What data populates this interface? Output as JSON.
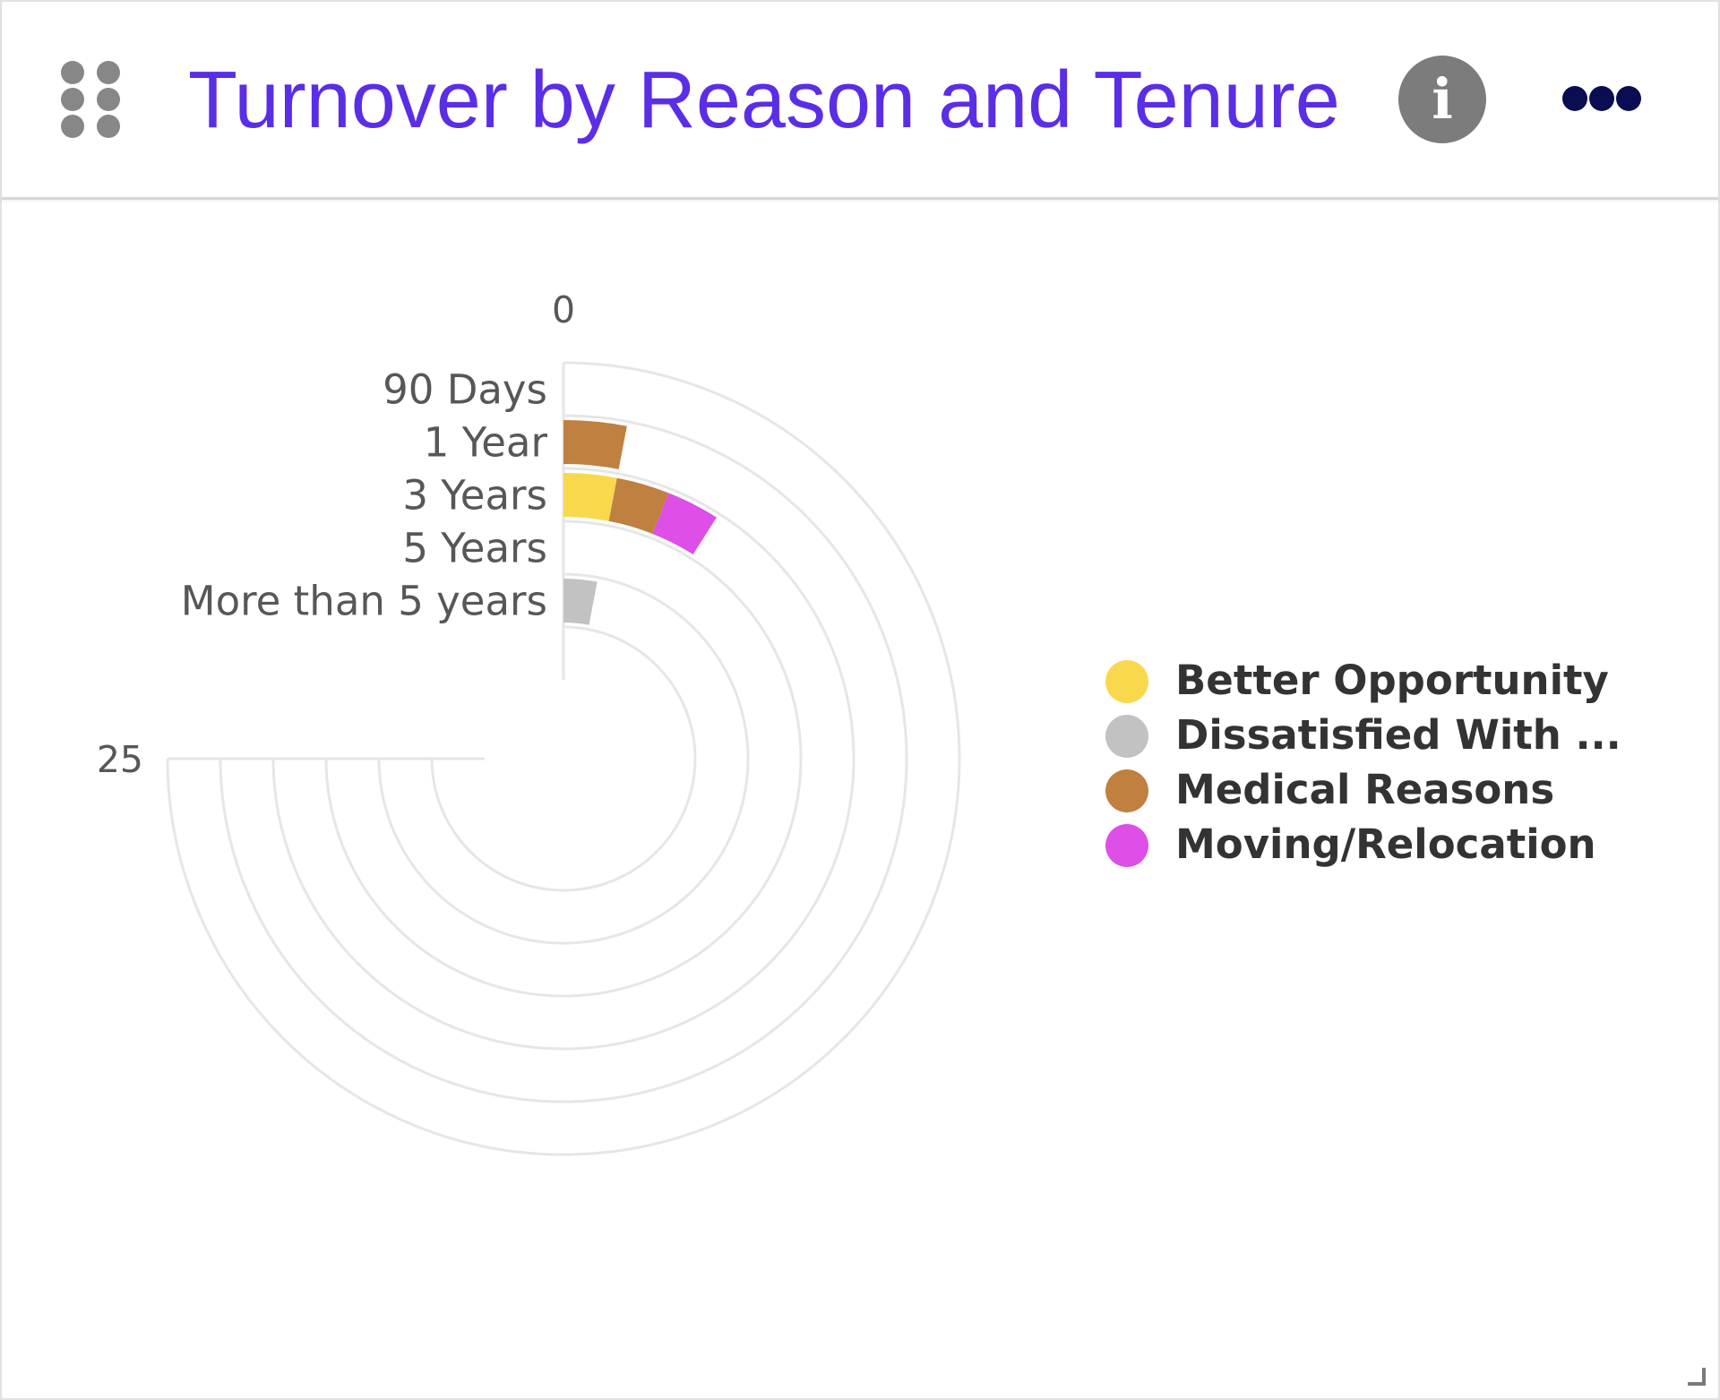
{
  "header": {
    "title": "Turnover by Reason and Tenure",
    "drag_icon": "grip-dots-icon",
    "info_icon": "info-icon",
    "info_glyph": "i",
    "more_icon": "more-horizontal-icon"
  },
  "chart_data": {
    "type": "radial-bar",
    "stacked": true,
    "categories": [
      "90 Days",
      "1 Year",
      "3 Years",
      "5 Years",
      "More than 5 years"
    ],
    "series": [
      {
        "name": "Better Opportunity",
        "color": "#f8d94e",
        "values": [
          0,
          0,
          1,
          0,
          0
        ]
      },
      {
        "name": "Dissatisfied With ...",
        "color": "#c2c2c2",
        "values": [
          0,
          0,
          0,
          0,
          1
        ]
      },
      {
        "name": "Medical Reasons",
        "color": "#c08040",
        "values": [
          0,
          1,
          1,
          0,
          0
        ]
      },
      {
        "name": "Moving/Relocation",
        "color": "#dd4fe6",
        "values": [
          0,
          0,
          1,
          0,
          0
        ]
      }
    ],
    "value_axis": {
      "min": 0,
      "max": 25,
      "tick_labels": [
        "0",
        "25"
      ]
    },
    "legend_position": "right",
    "grid": true
  }
}
